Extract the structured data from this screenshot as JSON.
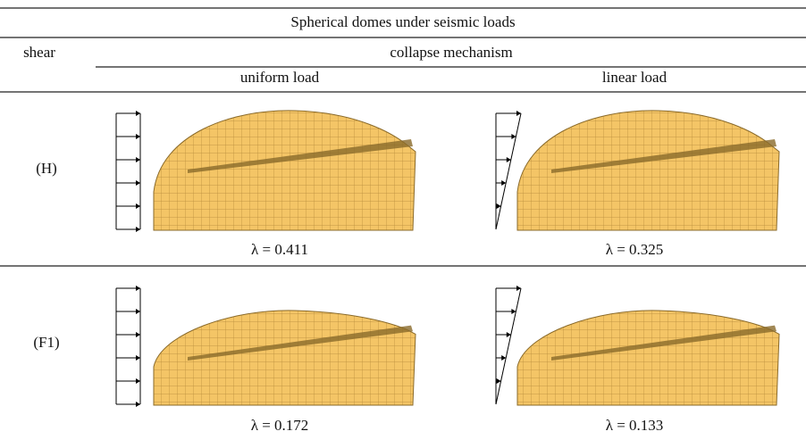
{
  "table": {
    "title": "Spherical domes under seismic loads",
    "header": {
      "shear": "shear",
      "group": "collapse mechanism",
      "columns": [
        "uniform load",
        "linear load"
      ]
    },
    "rows": [
      {
        "label": "(H)",
        "cells": [
          "λ = 0.411",
          "λ = 0.325"
        ]
      },
      {
        "label": "(F1)",
        "cells": [
          "λ = 0.172",
          "λ = 0.133"
        ]
      }
    ]
  }
}
